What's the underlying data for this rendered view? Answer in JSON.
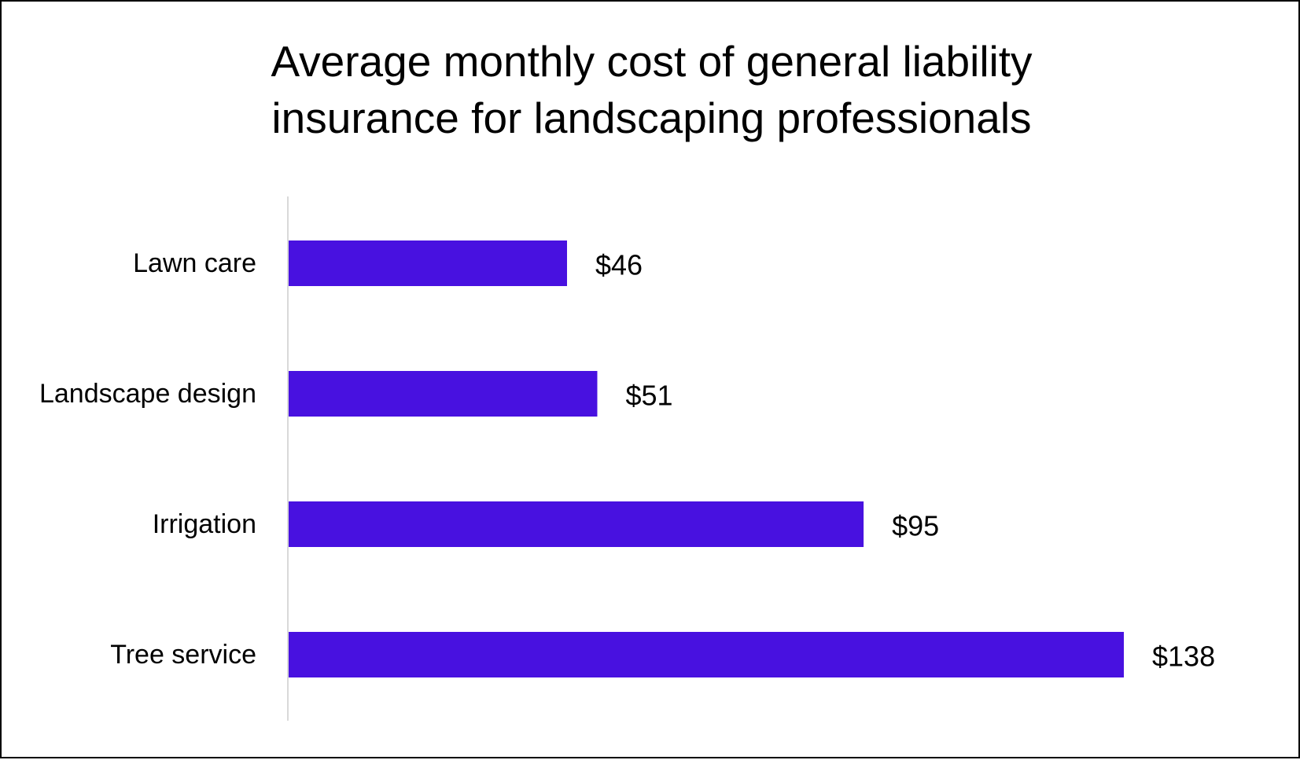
{
  "chart_data": {
    "type": "bar",
    "orientation": "horizontal",
    "title_lines": [
      "Average monthly cost of general liability",
      "insurance for landscaping professionals"
    ],
    "categories": [
      "Lawn care",
      "Landscape design",
      "Irrigation",
      "Tree service"
    ],
    "values": [
      46,
      51,
      95,
      138
    ],
    "value_labels": [
      "$46",
      "$51",
      "$95",
      "$138"
    ],
    "xlim": [
      0,
      138
    ],
    "grid": false,
    "legend": "none",
    "colors": {
      "bar": "#4811E0",
      "axis": "#D9D9D9",
      "text": "#000000"
    }
  }
}
